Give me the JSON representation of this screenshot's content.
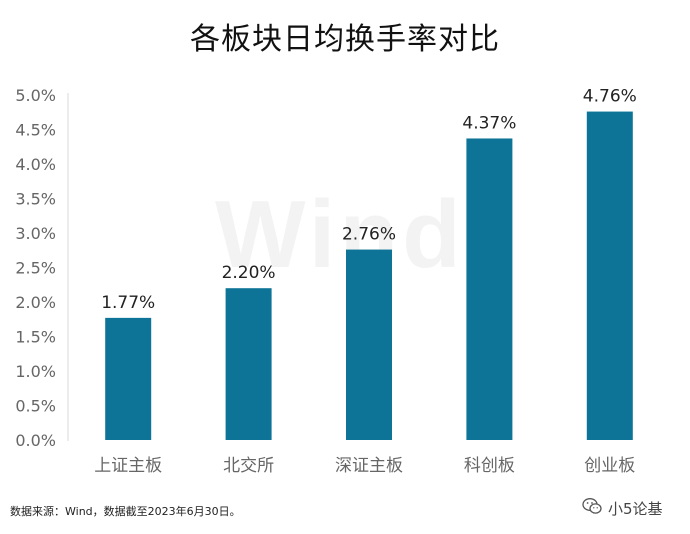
{
  "chart_data": {
    "type": "bar",
    "title": "各板块日均换手率对比",
    "categories": [
      "上证主板",
      "北交所",
      "深证主板",
      "科创板",
      "创业板"
    ],
    "values": [
      1.77,
      2.2,
      2.76,
      4.37,
      4.76
    ],
    "value_labels": [
      "1.77%",
      "2.20%",
      "2.76%",
      "4.37%",
      "4.76%"
    ],
    "ylim": [
      0,
      5.0
    ],
    "yticks": [
      "0.0%",
      "0.5%",
      "1.0%",
      "1.5%",
      "2.0%",
      "2.5%",
      "3.0%",
      "3.5%",
      "4.0%",
      "4.5%",
      "5.0%"
    ],
    "grid": false,
    "bar_color": "#0d7497"
  },
  "watermark": "Wind",
  "source_note": "数据来源：Wind，数据截至2023年6月30日。",
  "brand": {
    "name": "小5论基",
    "icon": "wechat-icon"
  }
}
